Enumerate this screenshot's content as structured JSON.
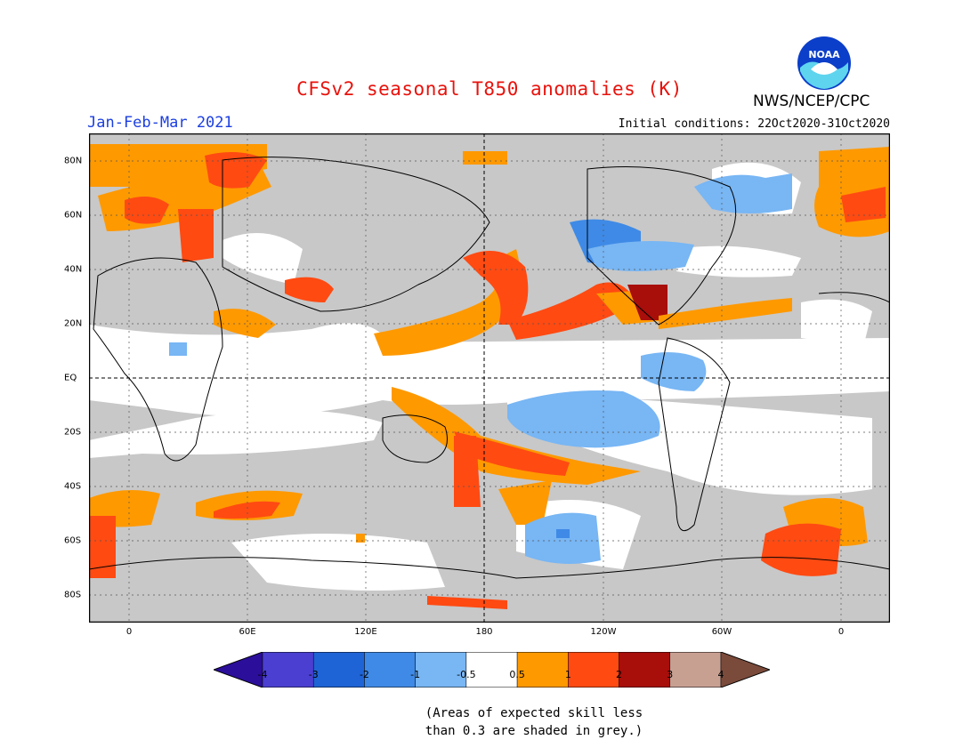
{
  "title": "CFSv2 seasonal T850 anomalies (K)",
  "period": "Jan-Feb-Mar 2021",
  "initial_conditions": "Initial conditions: 22Oct2020-31Oct2020",
  "organization": "NWS/NCEP/CPC",
  "logo_text": "NOAA",
  "axes": {
    "x_ticks": [
      "0",
      "60E",
      "120E",
      "180",
      "120W",
      "60W",
      "0"
    ],
    "y_ticks": [
      "80N",
      "60N",
      "40N",
      "20N",
      "EQ",
      "20S",
      "40S",
      "60S",
      "80S"
    ]
  },
  "colorbar": {
    "labels": [
      "-4",
      "-3",
      "-2",
      "-1",
      "-0.5",
      "0.5",
      "1",
      "2",
      "3",
      "4"
    ],
    "colors": [
      "#2b0e99",
      "#4a3fd0",
      "#1f64d6",
      "#3f8ae6",
      "#78b6f4",
      "#ffffff",
      "#ff9900",
      "#ff4a12",
      "#a80e0a",
      "#c8a092",
      "#7a4a3a"
    ]
  },
  "palette": {
    "grey_skill": "#c8c8c8",
    "land_outline": "#000000"
  },
  "note_lines": [
    "(Areas of expected skill less",
    "than 0.3 are shaded in grey.)"
  ]
}
